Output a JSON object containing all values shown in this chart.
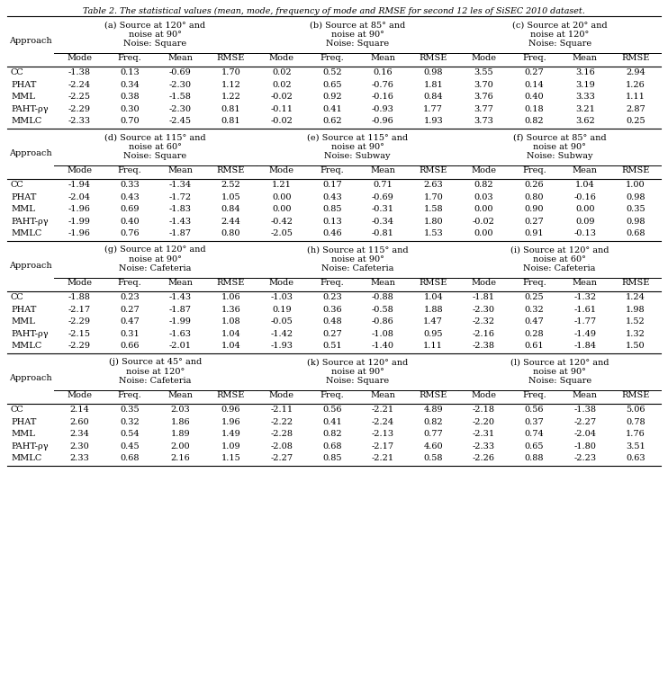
{
  "title": "Table 2. The statistical values (mean, mode, frequency of mode and RMSE for second 12 les of SiSEC 2010 dataset.",
  "sections": [
    {
      "label": "(a) Source at 120° and\nnoise at 90°",
      "noise": "Noise: Square",
      "col": 0,
      "row_group": 0
    },
    {
      "label": "(b) Source at 85° and\nnoise at 90°",
      "noise": "Noise: Square",
      "col": 1,
      "row_group": 0
    },
    {
      "label": "(c) Source at 20° and\nnoise at 120°",
      "noise": "Noise: Square",
      "col": 2,
      "row_group": 0
    },
    {
      "label": "(d) Source at 115° and\nnoise at 60°",
      "noise": "Noise: Square",
      "col": 0,
      "row_group": 1
    },
    {
      "label": "(e) Source at 115° and\nnoise at 90°",
      "noise": "Noise: Subway",
      "col": 1,
      "row_group": 1
    },
    {
      "label": "(f) Source at 85° and\nnoise at 90°",
      "noise": "Noise: Subway",
      "col": 2,
      "row_group": 1
    },
    {
      "label": "(g) Source at 120° and\nnoise at 90°",
      "noise": "Noise: Cafeteria",
      "col": 0,
      "row_group": 2
    },
    {
      "label": "(h) Source at 115° and\nnoise at 90°",
      "noise": "Noise: Cafeteria",
      "col": 1,
      "row_group": 2
    },
    {
      "label": "(i) Source at 120° and\nnoise at 60°",
      "noise": "Noise: Cafeteria",
      "col": 2,
      "row_group": 2
    },
    {
      "label": "(j) Source at 45° and\nnoise at 120°",
      "noise": "Noise: Cafeteria",
      "col": 0,
      "row_group": 3
    },
    {
      "label": "(k) Source at 120° and\nnoise at 90°",
      "noise": "Noise: Square",
      "col": 1,
      "row_group": 3
    },
    {
      "label": "(l) Source at 120° and\nnoise at 90°",
      "noise": "Noise: Square",
      "col": 2,
      "row_group": 3
    }
  ],
  "approaches": [
    "CC",
    "PHAT",
    "MML",
    "PAHT-ργ",
    "MMLC"
  ],
  "data": [
    [
      [
        -1.38,
        0.13,
        -0.69,
        1.7
      ],
      [
        -2.24,
        0.34,
        -2.3,
        1.12
      ],
      [
        -2.25,
        0.38,
        -1.58,
        1.22
      ],
      [
        -2.29,
        0.3,
        -2.3,
        0.81
      ],
      [
        -2.33,
        0.7,
        -2.45,
        0.81
      ]
    ],
    [
      [
        0.02,
        0.52,
        0.16,
        0.98
      ],
      [
        0.02,
        0.65,
        -0.76,
        1.81
      ],
      [
        -0.02,
        0.92,
        -0.16,
        0.84
      ],
      [
        -0.11,
        0.41,
        -0.93,
        1.77
      ],
      [
        -0.02,
        0.62,
        -0.96,
        1.93
      ]
    ],
    [
      [
        3.55,
        0.27,
        3.16,
        2.94
      ],
      [
        3.7,
        0.14,
        3.19,
        1.26
      ],
      [
        3.76,
        0.4,
        3.33,
        1.11
      ],
      [
        3.77,
        0.18,
        3.21,
        2.87
      ],
      [
        3.73,
        0.82,
        3.62,
        0.25
      ]
    ],
    [
      [
        -1.94,
        0.33,
        -1.34,
        2.52
      ],
      [
        -2.04,
        0.43,
        -1.72,
        1.05
      ],
      [
        -1.96,
        0.69,
        -1.83,
        0.84
      ],
      [
        -1.99,
        0.4,
        -1.43,
        2.44
      ],
      [
        -1.96,
        0.76,
        -1.87,
        0.8
      ]
    ],
    [
      [
        1.21,
        0.17,
        0.71,
        2.63
      ],
      [
        0.0,
        0.43,
        -0.69,
        1.7
      ],
      [
        0.0,
        0.85,
        -0.31,
        1.58
      ],
      [
        -0.42,
        0.13,
        -0.34,
        1.8
      ],
      [
        -2.05,
        0.46,
        -0.81,
        1.53
      ]
    ],
    [
      [
        0.82,
        0.26,
        1.04,
        1.0
      ],
      [
        0.03,
        0.8,
        -0.16,
        0.98
      ],
      [
        0.0,
        0.9,
        0.0,
        0.35
      ],
      [
        -0.02,
        0.27,
        0.09,
        0.98
      ],
      [
        0.0,
        0.91,
        -0.13,
        0.68
      ]
    ],
    [
      [
        -1.88,
        0.23,
        -1.43,
        1.06
      ],
      [
        -2.17,
        0.27,
        -1.87,
        1.36
      ],
      [
        -2.29,
        0.47,
        -1.99,
        1.08
      ],
      [
        -2.15,
        0.31,
        -1.63,
        1.04
      ],
      [
        -2.29,
        0.66,
        -2.01,
        1.04
      ]
    ],
    [
      [
        -1.03,
        0.23,
        -0.88,
        1.04
      ],
      [
        0.19,
        0.36,
        -0.58,
        1.88
      ],
      [
        -0.05,
        0.48,
        -0.86,
        1.47
      ],
      [
        -1.42,
        0.27,
        -1.08,
        0.95
      ],
      [
        -1.93,
        0.51,
        -1.4,
        1.11
      ]
    ],
    [
      [
        -1.81,
        0.25,
        -1.32,
        1.24
      ],
      [
        -2.3,
        0.32,
        -1.61,
        1.98
      ],
      [
        -2.32,
        0.47,
        -1.77,
        1.52
      ],
      [
        -2.16,
        0.28,
        -1.49,
        1.32
      ],
      [
        -2.38,
        0.61,
        -1.84,
        1.5
      ]
    ],
    [
      [
        2.14,
        0.35,
        2.03,
        0.96
      ],
      [
        2.6,
        0.32,
        1.86,
        1.96
      ],
      [
        2.34,
        0.54,
        1.89,
        1.49
      ],
      [
        2.3,
        0.45,
        2.0,
        1.09
      ],
      [
        2.33,
        0.68,
        2.16,
        1.15
      ]
    ],
    [
      [
        -2.11,
        0.56,
        -2.21,
        4.89
      ],
      [
        -2.22,
        0.41,
        -2.24,
        0.82
      ],
      [
        -2.28,
        0.82,
        -2.13,
        0.77
      ],
      [
        -2.08,
        0.68,
        -2.17,
        4.6
      ],
      [
        -2.27,
        0.85,
        -2.21,
        0.58
      ]
    ],
    [
      [
        -2.18,
        0.56,
        -1.38,
        5.06
      ],
      [
        -2.2,
        0.37,
        -2.27,
        0.78
      ],
      [
        -2.31,
        0.74,
        -2.04,
        1.76
      ],
      [
        -2.33,
        0.65,
        -1.8,
        3.51
      ],
      [
        -2.26,
        0.88,
        -2.23,
        0.63
      ]
    ]
  ],
  "col_headers": [
    "Mode",
    "Freq.",
    "Mean",
    "RMSE"
  ],
  "bg_color": "#ffffff",
  "text_color": "#000000",
  "line_color": "#000000",
  "figw": 7.42,
  "figh": 7.74,
  "dpi": 100
}
